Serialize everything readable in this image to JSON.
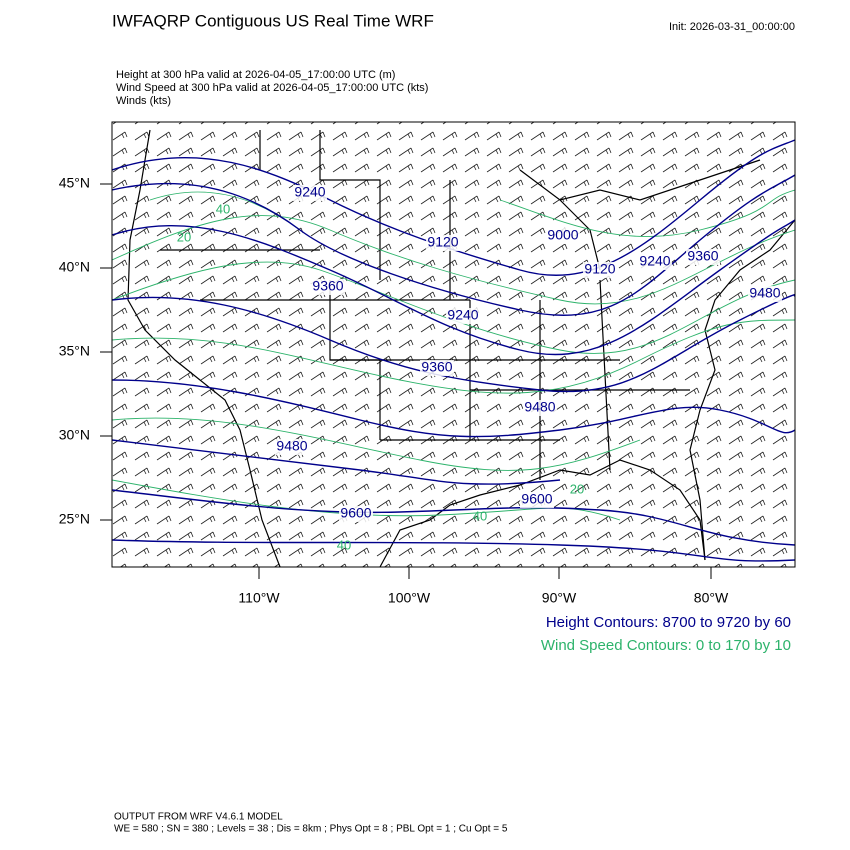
{
  "header": {
    "title": "IWFAQRP Contiguous US Real Time WRF",
    "init": "Init: 2026-03-31_00:00:00"
  },
  "fields": [
    "Height at 300 hPa valid at 2026-04-05_17:00:00 UTC   (m)",
    "Wind Speed at 300 hPa valid at 2026-04-05_17:00:00 UTC   (kts)",
    "Winds   (kts)"
  ],
  "map": {
    "lat_labels": [
      "45°N",
      "40°N",
      "35°N",
      "30°N",
      "25°N"
    ],
    "lon_labels": [
      "110°W",
      "100°W",
      "90°W",
      "80°W"
    ],
    "height_labels": [
      "9240",
      "9120",
      "9000",
      "9120",
      "9240",
      "9360",
      "9480",
      "9360",
      "9240",
      "9360",
      "9480",
      "9480",
      "9600",
      "9600"
    ],
    "wind_labels": [
      "40",
      "20",
      "40",
      "20",
      "40"
    ]
  },
  "legend": {
    "height": "Height Contours: 8700 to 9720 by 60",
    "wind": "Wind Speed Contours: 0 to 170 by 10"
  },
  "footer": {
    "model": "OUTPUT FROM WRF V4.6.1 MODEL",
    "settings": "WE = 580 ; SN = 380 ; Levels = 38 ; Dis = 8km ; Phys Opt = 8 ; PBL Opt = 1 ; Cu Opt = 5"
  }
}
